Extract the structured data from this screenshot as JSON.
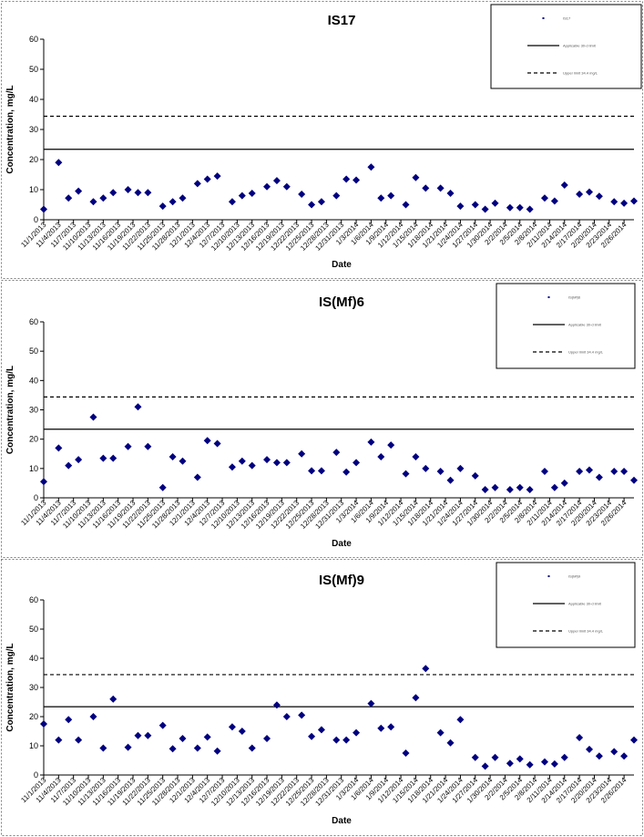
{
  "colors": {
    "marker": "#000080",
    "line": "#000000",
    "background": "#ffffff"
  },
  "x_tick_labels": [
    "11/1/2013",
    "11/4/2013",
    "11/7/2013",
    "11/10/2013",
    "11/13/2013",
    "11/16/2013",
    "11/19/2013",
    "11/22/2013",
    "11/25/2013",
    "11/28/2013",
    "12/1/2013",
    "12/4/2013",
    "12/7/2013",
    "12/10/2013",
    "12/13/2013",
    "12/16/2013",
    "12/19/2013",
    "12/22/2013",
    "12/25/2013",
    "12/28/2013",
    "12/31/2013",
    "1/3/2014",
    "1/6/2014",
    "1/9/2014",
    "1/12/2014",
    "1/15/2014",
    "1/18/2014",
    "1/21/2014",
    "1/24/2014",
    "1/27/2014",
    "1/30/2014",
    "2/2/2014",
    "2/5/2014",
    "2/8/2014",
    "2/11/2014",
    "2/14/2014",
    "2/17/2014",
    "2/20/2014",
    "2/23/2014",
    "2/26/2014"
  ],
  "chart_data": [
    {
      "type": "scatter",
      "title": "IS17",
      "xlabel": "Date",
      "ylabel": "Concentration, mg/L",
      "ylim": [
        0,
        60
      ],
      "yticks": [
        0,
        10,
        20,
        30,
        40,
        50,
        60
      ],
      "grid": false,
      "legend_position": "top-right",
      "legend": [
        {
          "label": "IS17",
          "style": "marker"
        },
        {
          "label": "Applicable 30-d limit",
          "style": "solid"
        },
        {
          "label": "Upper limit 34.4 mg/L",
          "style": "dashed"
        }
      ],
      "reference_lines": [
        {
          "value": 23.4,
          "style": "solid"
        },
        {
          "value": 34.4,
          "style": "dashed"
        }
      ],
      "series": [
        {
          "x": [
            "11/1/2013",
            "11/4/2013",
            "11/6/2013",
            "11/8/2013",
            "11/11/2013",
            "11/13/2013",
            "11/15/2013",
            "11/18/2013",
            "11/20/2013",
            "11/22/2013",
            "11/25/2013",
            "11/27/2013",
            "11/29/2013",
            "12/2/2013",
            "12/4/2013",
            "12/6/2013",
            "12/9/2013",
            "12/11/2013",
            "12/13/2013",
            "12/16/2013",
            "12/18/2013",
            "12/20/2013",
            "12/23/2013",
            "12/25/2013",
            "12/27/2013",
            "12/30/2013",
            "1/1/2014",
            "1/3/2014",
            "1/6/2014",
            "1/8/2014",
            "1/10/2014",
            "1/13/2014",
            "1/15/2014",
            "1/17/2014",
            "1/20/2014",
            "1/22/2014",
            "1/24/2014",
            "1/27/2014",
            "1/29/2014",
            "1/31/2014",
            "2/3/2014",
            "2/5/2014",
            "2/7/2014",
            "2/10/2014",
            "2/12/2014",
            "2/14/2014",
            "2/17/2014",
            "2/19/2014",
            "2/21/2014",
            "2/24/2014",
            "2/26/2014",
            "2/28/2014"
          ],
          "y": [
            3.5,
            19,
            7.2,
            9.5,
            6,
            7.2,
            9,
            10,
            9,
            9,
            4.5,
            6,
            7.2,
            12,
            13.5,
            14.5,
            6,
            8,
            8.8,
            11,
            13,
            11,
            8.5,
            5,
            6,
            8,
            13.5,
            13.2,
            17.5,
            7.2,
            8,
            5,
            14,
            10.5,
            10.5,
            8.8,
            4.5,
            5,
            3.5,
            5.5,
            4,
            4,
            3.5,
            7.2,
            6.2,
            11.5,
            8.5,
            9.2,
            7.8,
            6,
            5.5,
            6.2
          ]
        }
      ]
    },
    {
      "type": "scatter",
      "title": "IS(Mf)6",
      "xlabel": "Date",
      "ylabel": "Concentration, mg/L",
      "ylim": [
        0,
        60
      ],
      "yticks": [
        0,
        10,
        20,
        30,
        40,
        50,
        60
      ],
      "grid": false,
      "legend_position": "top-right",
      "legend": [
        {
          "label": "IS(Mf)6",
          "style": "marker"
        },
        {
          "label": "Applicable 30-d limit",
          "style": "solid"
        },
        {
          "label": "Upper limit 34.4 mg/L",
          "style": "dashed"
        }
      ],
      "reference_lines": [
        {
          "value": 23.4,
          "style": "solid"
        },
        {
          "value": 34.4,
          "style": "dashed"
        }
      ],
      "series": [
        {
          "x": [
            "11/1/2013",
            "11/4/2013",
            "11/6/2013",
            "11/8/2013",
            "11/11/2013",
            "11/13/2013",
            "11/15/2013",
            "11/18/2013",
            "11/20/2013",
            "11/22/2013",
            "11/25/2013",
            "11/27/2013",
            "11/29/2013",
            "12/2/2013",
            "12/4/2013",
            "12/6/2013",
            "12/9/2013",
            "12/11/2013",
            "12/13/2013",
            "12/16/2013",
            "12/18/2013",
            "12/20/2013",
            "12/23/2013",
            "12/25/2013",
            "12/27/2013",
            "12/30/2013",
            "1/1/2014",
            "1/3/2014",
            "1/6/2014",
            "1/8/2014",
            "1/10/2014",
            "1/13/2014",
            "1/15/2014",
            "1/17/2014",
            "1/20/2014",
            "1/22/2014",
            "1/24/2014",
            "1/27/2014",
            "1/29/2014",
            "1/31/2014",
            "2/3/2014",
            "2/5/2014",
            "2/7/2014",
            "2/10/2014",
            "2/12/2014",
            "2/14/2014",
            "2/17/2014",
            "2/19/2014",
            "2/21/2014",
            "2/24/2014",
            "2/26/2014",
            "2/28/2014"
          ],
          "y": [
            5.5,
            17,
            11,
            13,
            27.5,
            13.5,
            13.5,
            17.5,
            31,
            17.5,
            3.5,
            14,
            12.5,
            7,
            19.5,
            18.5,
            10.5,
            12.5,
            11,
            13,
            12,
            12,
            15,
            9.2,
            9.2,
            15.5,
            8.8,
            12,
            19,
            14,
            18,
            8.2,
            14,
            10,
            9,
            6,
            10,
            7.5,
            2.8,
            3.5,
            2.8,
            3.5,
            2.8,
            9,
            3.5,
            5,
            9,
            9.5,
            7,
            9,
            9,
            6
          ]
        }
      ]
    },
    {
      "type": "scatter",
      "title": "IS(Mf)9",
      "xlabel": "Date",
      "ylabel": "Concentration, mg/L",
      "ylim": [
        0,
        60
      ],
      "yticks": [
        0,
        10,
        20,
        30,
        40,
        50,
        60
      ],
      "grid": false,
      "legend_position": "top-right",
      "legend": [
        {
          "label": "IS(Mf)9",
          "style": "marker"
        },
        {
          "label": "Applicable 30-d limit",
          "style": "solid"
        },
        {
          "label": "Upper limit 34.4 mg/L",
          "style": "dashed"
        }
      ],
      "reference_lines": [
        {
          "value": 23.4,
          "style": "solid"
        },
        {
          "value": 34.4,
          "style": "dashed"
        }
      ],
      "series": [
        {
          "x": [
            "11/1/2013",
            "11/4/2013",
            "11/6/2013",
            "11/8/2013",
            "11/11/2013",
            "11/13/2013",
            "11/15/2013",
            "11/18/2013",
            "11/20/2013",
            "11/22/2013",
            "11/25/2013",
            "11/27/2013",
            "11/29/2013",
            "12/2/2013",
            "12/4/2013",
            "12/6/2013",
            "12/9/2013",
            "12/11/2013",
            "12/13/2013",
            "12/16/2013",
            "12/18/2013",
            "12/20/2013",
            "12/23/2013",
            "12/25/2013",
            "12/27/2013",
            "12/30/2013",
            "1/1/2014",
            "1/3/2014",
            "1/6/2014",
            "1/8/2014",
            "1/10/2014",
            "1/13/2014",
            "1/15/2014",
            "1/17/2014",
            "1/20/2014",
            "1/22/2014",
            "1/24/2014",
            "1/27/2014",
            "1/29/2014",
            "1/31/2014",
            "2/3/2014",
            "2/5/2014",
            "2/7/2014",
            "2/10/2014",
            "2/12/2014",
            "2/14/2014",
            "2/17/2014",
            "2/19/2014",
            "2/21/2014",
            "2/24/2014",
            "2/26/2014",
            "2/28/2014"
          ],
          "y": [
            17.5,
            12,
            19,
            12,
            20,
            9.2,
            26,
            9.5,
            13.5,
            13.5,
            17,
            9,
            12.5,
            9.2,
            13,
            8.2,
            16.5,
            15,
            9.2,
            12.5,
            24,
            20,
            20.5,
            13.2,
            15.5,
            12,
            12,
            14.5,
            24.5,
            16,
            16.5,
            7.5,
            26.5,
            36.5,
            14.5,
            11,
            19,
            6,
            3,
            6,
            4,
            5.5,
            3.5,
            4.5,
            3.8,
            6,
            12.8,
            8.8,
            6.5,
            8,
            6.5,
            12
          ]
        }
      ]
    }
  ]
}
